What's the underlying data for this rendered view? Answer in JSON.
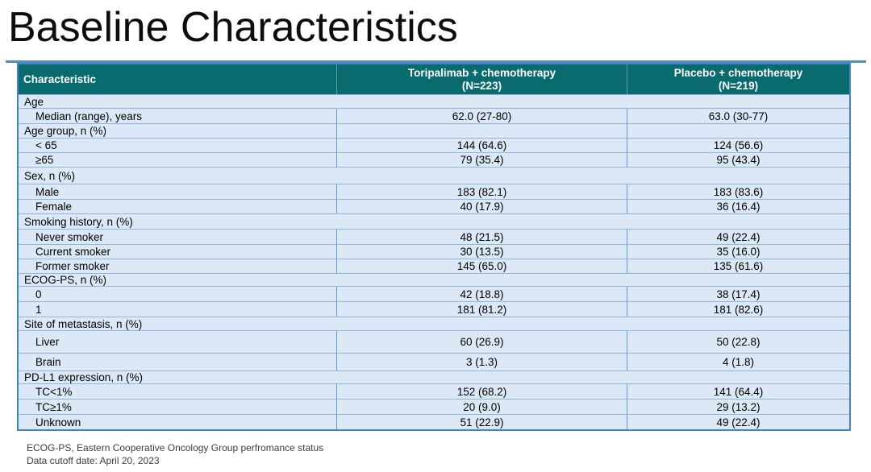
{
  "slide": {
    "title": "Baseline Characteristics"
  },
  "table": {
    "columns": [
      {
        "label": "Characteristic"
      },
      {
        "label": "Toripalimab + chemotherapy",
        "sublabel": "(N=223)"
      },
      {
        "label": "Placebo + chemotherapy",
        "sublabel": "(N=219)"
      }
    ],
    "rows": [
      {
        "type": "section",
        "label": "Age"
      },
      {
        "type": "sub",
        "label": "Median (range), years",
        "toripalimab": "62.0 (27-80)",
        "placebo": "63.0 (30-77)"
      },
      {
        "type": "section_cells",
        "label": "Age group, n (%)",
        "toripalimab": "",
        "placebo": ""
      },
      {
        "type": "sub",
        "label": "< 65",
        "toripalimab": "144 (64.6)",
        "placebo": "124 (56.6)"
      },
      {
        "type": "sub",
        "label": "≥65",
        "toripalimab": "79 (35.4)",
        "placebo": "95 (43.4)"
      },
      {
        "type": "section",
        "label": "Sex, n (%)"
      },
      {
        "type": "sub",
        "label": "Male",
        "toripalimab": "183 (82.1)",
        "placebo": "183 (83.6)"
      },
      {
        "type": "sub",
        "label": "Female",
        "toripalimab": "40 (17.9)",
        "placebo": "36 (16.4)"
      },
      {
        "type": "section",
        "label": "Smoking history, n (%)"
      },
      {
        "type": "sub",
        "label": "Never smoker",
        "toripalimab": "48 (21.5)",
        "placebo": "49 (22.4)"
      },
      {
        "type": "sub",
        "label": "Current smoker",
        "toripalimab": "30 (13.5)",
        "placebo": "35 (16.0)"
      },
      {
        "type": "sub",
        "label": "Former smoker",
        "toripalimab": "145 (65.0)",
        "placebo": "135 (61.6)"
      },
      {
        "type": "section",
        "label": "ECOG-PS, n (%)"
      },
      {
        "type": "sub",
        "label": "0",
        "toripalimab": "42 (18.8)",
        "placebo": "38 (17.4)"
      },
      {
        "type": "sub",
        "label": "1",
        "toripalimab": "181 (81.2)",
        "placebo": "181 (82.6)"
      },
      {
        "type": "section",
        "label": "Site of metastasis, n (%)"
      },
      {
        "type": "sub",
        "label": "Liver",
        "toripalimab": "60 (26.9)",
        "placebo": "50 (22.8)"
      },
      {
        "type": "sub",
        "label": "Brain",
        "toripalimab": "3 (1.3)",
        "placebo": "4 (1.8)"
      },
      {
        "type": "section",
        "label": "PD-L1 expression, n (%)"
      },
      {
        "type": "sub",
        "label": "TC<1%",
        "toripalimab": "152 (68.2)",
        "placebo": "141 (64.4)"
      },
      {
        "type": "sub",
        "label": "TC≥1%",
        "toripalimab": "20 (9.0)",
        "placebo": "29 (13.2)"
      },
      {
        "type": "sub",
        "label": "Unknown",
        "toripalimab": "51 (22.9)",
        "placebo": "49 (22.4)"
      }
    ]
  },
  "footnotes": [
    "ECOG-PS, Eastern Cooperative Oncology Group perfromance status",
    "Data cutoff date: April 20, 2023"
  ],
  "colors": {
    "header_bg": "#0a6b6f",
    "header_text": "#ffffff",
    "cell_bg": "#dce8f5",
    "row_border": "#8db7e0",
    "column_border": "#5f97d0",
    "outer_border": "#4384c7",
    "body_text": "#000000",
    "footnote_text": "#3d3d3d"
  }
}
